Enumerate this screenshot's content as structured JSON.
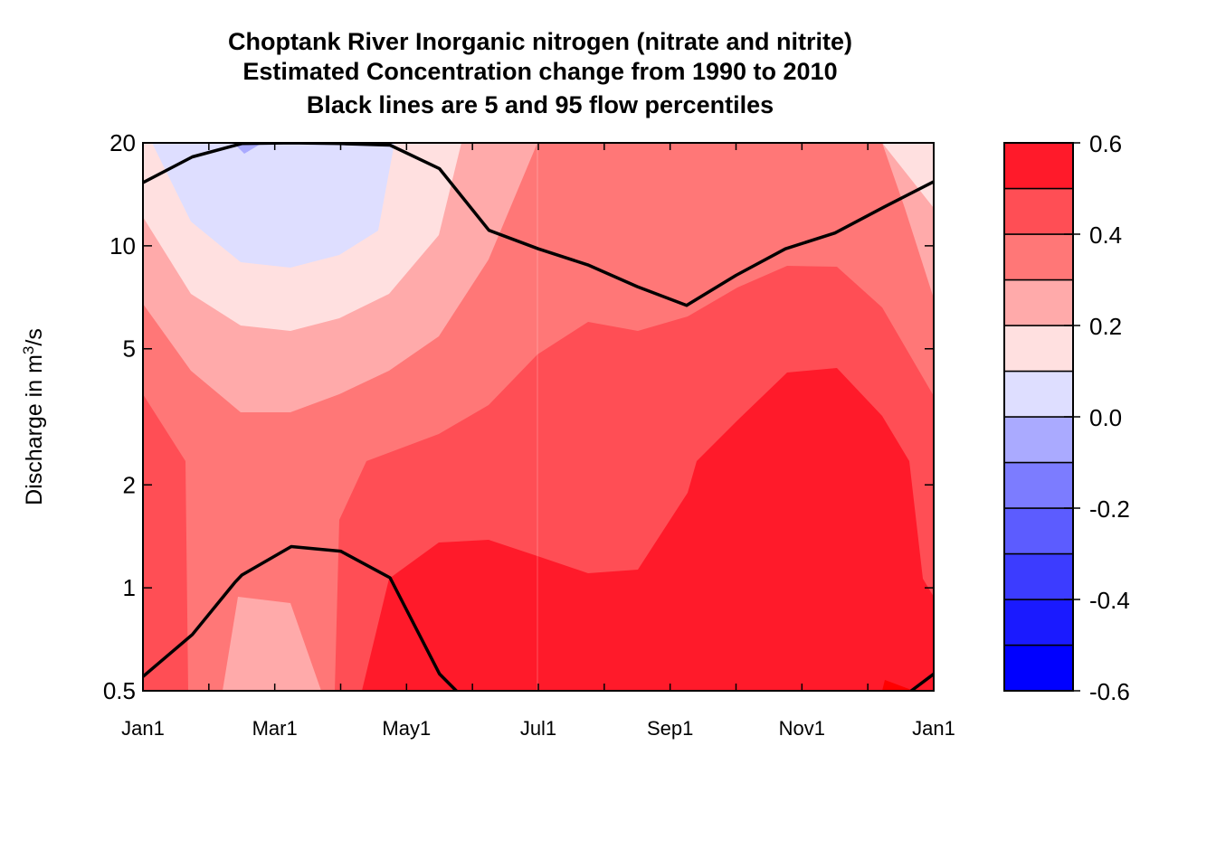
{
  "chart_data": {
    "type": "heatmap",
    "title_lines": [
      "Choptank River  Inorganic nitrogen (nitrate and nitrite)",
      "Estimated Concentration change from 1990 to 2010",
      "Black lines are 5 and 95 flow percentiles"
    ],
    "ylabel": {
      "prefix": "Discharge in m",
      "sup": "3",
      "suffix": "/s"
    },
    "y_scale": "log",
    "ylim": [
      0.5,
      20
    ],
    "y_ticks": [
      {
        "value": 0.5,
        "label": "0.5"
      },
      {
        "value": 1,
        "label": "1"
      },
      {
        "value": 2,
        "label": "2"
      },
      {
        "value": 5,
        "label": "5"
      },
      {
        "value": 10,
        "label": "10"
      },
      {
        "value": 20,
        "label": "20"
      }
    ],
    "xlim": [
      0,
      12
    ],
    "x_ticks": [
      {
        "value": 0,
        "label": "Jan1"
      },
      {
        "value": 2,
        "label": "Mar1"
      },
      {
        "value": 4,
        "label": "May1"
      },
      {
        "value": 6,
        "label": "Jul1"
      },
      {
        "value": 8,
        "label": "Sep1"
      },
      {
        "value": 10,
        "label": "Nov1"
      },
      {
        "value": 12,
        "label": "Jan1"
      }
    ],
    "color_levels": [
      -0.6,
      -0.5,
      -0.4,
      -0.3,
      -0.2,
      -0.1,
      0.0,
      0.1,
      0.2,
      0.3,
      0.4,
      0.5,
      0.6
    ],
    "color_bands": [
      "#0000ff",
      "#1a1aff",
      "#3c3cff",
      "#5c5cff",
      "#7c7cff",
      "#aaaaff",
      "#dedeff",
      "#ffe0e0",
      "#ffaaaa",
      "#ff7777",
      "#ff4e55",
      "#ff1a2a"
    ],
    "colorbar_ticks": [
      {
        "value": 0.6,
        "label": "0.6"
      },
      {
        "value": 0.4,
        "label": "0.4"
      },
      {
        "value": 0.2,
        "label": "0.2"
      },
      {
        "value": 0.0,
        "label": "0.0"
      },
      {
        "value": -0.2,
        "label": "-0.2"
      },
      {
        "value": -0.4,
        "label": "-0.4"
      },
      {
        "value": -0.6,
        "label": "-0.6"
      }
    ],
    "flow_percentile_95": {
      "x": [
        0,
        0.75,
        1.5,
        2.25,
        3,
        3.75,
        4.5,
        5.25,
        6,
        6.75,
        7.5,
        8.25,
        9,
        9.75,
        10.5,
        11.25,
        12
      ],
      "y": [
        15.3,
        18.2,
        19.9,
        20,
        19.9,
        19.7,
        16.8,
        11.1,
        9.8,
        8.8,
        7.6,
        6.7,
        8.2,
        9.8,
        10.9,
        13.0,
        15.4
      ]
    },
    "flow_percentile_5": {
      "x": [
        0,
        0.75,
        1.4,
        1.5,
        2.25,
        3,
        3.75,
        4.5,
        4.8
      ],
      "y": [
        0.55,
        0.73,
        1.04,
        1.09,
        1.32,
        1.28,
        1.07,
        0.56,
        0.49
      ],
      "x2": [
        11.6,
        12
      ],
      "y2": [
        0.49,
        0.56
      ]
    },
    "grid": false,
    "legend": "colorbar-right"
  }
}
